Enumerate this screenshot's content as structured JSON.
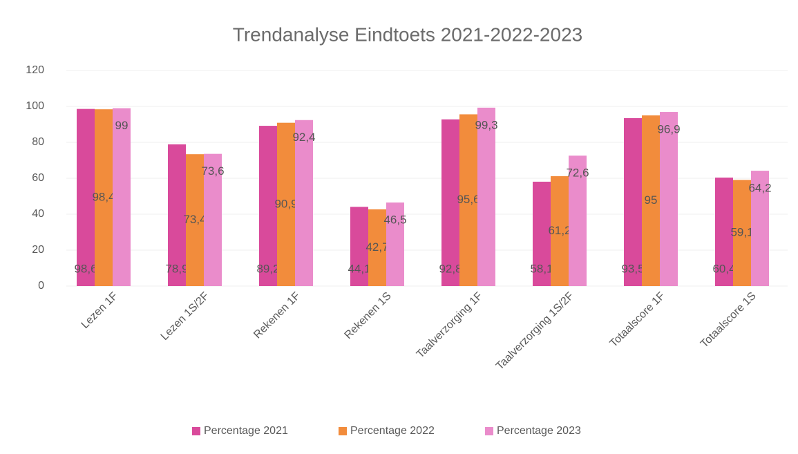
{
  "chart_data": {
    "type": "bar",
    "title": "Trendanalyse Eindtoets 2021-2022-2023",
    "categories": [
      "Lezen 1F",
      "Lezen 1S/2F",
      "Rekenen 1F",
      "Rekenen 1S",
      "Taalverzorging 1F",
      "Taalverzorging 1S/2F",
      "Totaalscore 1F",
      "Totaalscore 1S"
    ],
    "series": [
      {
        "name": "Percentage 2021",
        "color": "#d94a9b",
        "values": [
          98.6,
          78.9,
          89.2,
          44.1,
          92.8,
          58.1,
          93.5,
          60.4
        ],
        "value_labels": [
          "98,6",
          "78,9",
          "89,2",
          "44,1",
          "92,8",
          "58,1",
          "93,5",
          "60,4"
        ]
      },
      {
        "name": "Percentage 2022",
        "color": "#f28c3c",
        "values": [
          98.4,
          73.4,
          90.9,
          42.7,
          95.6,
          61.2,
          95,
          59.1
        ],
        "value_labels": [
          "98,4",
          "73,4",
          "90,9",
          "42,7",
          "95,6",
          "61,2",
          "95",
          "59,1"
        ]
      },
      {
        "name": "Percentage 2023",
        "color": "#ea8ccb",
        "values": [
          99,
          73.6,
          92.4,
          46.5,
          99.3,
          72.6,
          96.9,
          64.2
        ],
        "value_labels": [
          "99",
          "73,6",
          "92,4",
          "46,5",
          "99,3",
          "72,6",
          "96,9",
          "64,2"
        ]
      }
    ],
    "ylim": [
      0,
      120
    ],
    "yticks": [
      0,
      20,
      40,
      60,
      80,
      100,
      120
    ],
    "grid": true,
    "legend": "bottom"
  }
}
